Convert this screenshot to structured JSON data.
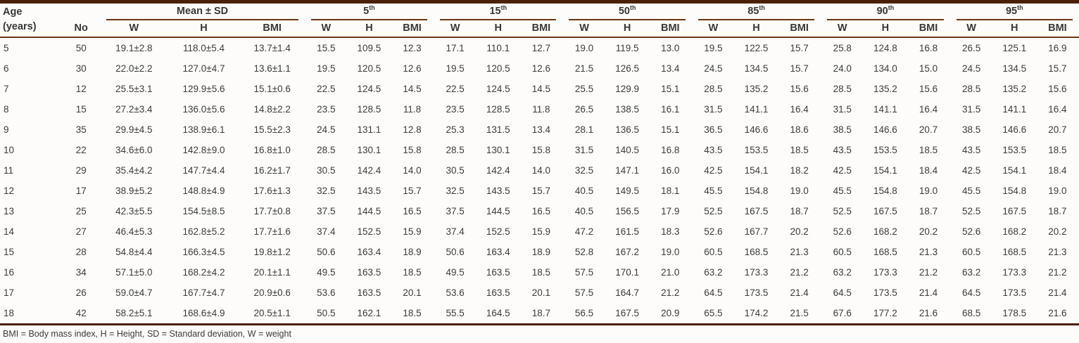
{
  "theme": {
    "rule_dark": "#4a2106",
    "rule_thin": "#6e3512",
    "text": "#3c3c3c",
    "background": "#fdfcfa"
  },
  "table": {
    "corner": {
      "line1": "Age",
      "line2": "(years)"
    },
    "no_label": "No",
    "groups": [
      {
        "label": "Mean ± SD",
        "sup": ""
      },
      {
        "label": "5",
        "sup": "th"
      },
      {
        "label": "15",
        "sup": "th"
      },
      {
        "label": "50",
        "sup": "th"
      },
      {
        "label": "85",
        "sup": "th"
      },
      {
        "label": "90",
        "sup": "th"
      },
      {
        "label": "95",
        "sup": "th"
      }
    ],
    "subcols": [
      "W",
      "H",
      "BMI"
    ],
    "rows": [
      {
        "age": "5",
        "no": "50",
        "cells": [
          "19.1±2.8",
          "118.0±5.4",
          "13.7±1.4",
          "15.5",
          "109.5",
          "12.3",
          "17.1",
          "110.1",
          "12.7",
          "19.0",
          "119.5",
          "13.0",
          "19.5",
          "122.5",
          "15.7",
          "25.8",
          "124.8",
          "16.8",
          "26.5",
          "125.1",
          "16.9"
        ]
      },
      {
        "age": "6",
        "no": "30",
        "cells": [
          "22.0±2.2",
          "127.0±4.7",
          "13.6±1.1",
          "19.5",
          "120.5",
          "12.6",
          "19.5",
          "120.5",
          "12.6",
          "21.5",
          "126.5",
          "13.4",
          "24.5",
          "134.5",
          "15.7",
          "24.0",
          "134.0",
          "15.0",
          "24.5",
          "134.5",
          "15.7"
        ]
      },
      {
        "age": "7",
        "no": "12",
        "cells": [
          "25.5±3.1",
          "129.9±5.6",
          "15.1±0.6",
          "22.5",
          "124.5",
          "14.5",
          "22.5",
          "124.5",
          "14.5",
          "25.5",
          "129.9",
          "15.1",
          "28.5",
          "135.2",
          "15.6",
          "28.5",
          "135.2",
          "15.6",
          "28.5",
          "135.2",
          "15.6"
        ]
      },
      {
        "age": "8",
        "no": "15",
        "cells": [
          "27.2±3.4",
          "136.0±5.6",
          "14.8±2.2",
          "23.5",
          "128.5",
          "11.8",
          "23.5",
          "128.5",
          "11.8",
          "26.5",
          "138.5",
          "16.1",
          "31.5",
          "141.1",
          "16.4",
          "31.5",
          "141.1",
          "16.4",
          "31.5",
          "141.1",
          "16.4"
        ]
      },
      {
        "age": "9",
        "no": "35",
        "cells": [
          "29.9±4.5",
          "138.9±6.1",
          "15.5±2.3",
          "24.5",
          "131.1",
          "12.8",
          "25.3",
          "131.5",
          "13.4",
          "28.1",
          "136.5",
          "15.1",
          "36.5",
          "146.6",
          "18.6",
          "38.5",
          "146.6",
          "20.7",
          "38.5",
          "146.6",
          "20.7"
        ]
      },
      {
        "age": "10",
        "no": "22",
        "cells": [
          "34.6±6.0",
          "142.8±9.0",
          "16.8±1.0",
          "28.5",
          "130.1",
          "15.8",
          "28.5",
          "130.1",
          "15.8",
          "31.5",
          "140.5",
          "16.8",
          "43.5",
          "153.5",
          "18.5",
          "43.5",
          "153.5",
          "18.5",
          "43.5",
          "153.5",
          "18.5"
        ]
      },
      {
        "age": "11",
        "no": "29",
        "cells": [
          "35.4±4.2",
          "147.7±4.4",
          "16.2±1.7",
          "30.5",
          "142.4",
          "14.0",
          "30.5",
          "142.4",
          "14.0",
          "32.5",
          "147.1",
          "16.0",
          "42.5",
          "154.1",
          "18.2",
          "42.5",
          "154.1",
          "18.4",
          "42.5",
          "154.1",
          "18.4"
        ]
      },
      {
        "age": "12",
        "no": "17",
        "cells": [
          "38.9±5.2",
          "148.8±4.9",
          "17.6±1.3",
          "32.5",
          "143.5",
          "15.7",
          "32.5",
          "143.5",
          "15.7",
          "40.5",
          "149.5",
          "18.1",
          "45.5",
          "154.8",
          "19.0",
          "45.5",
          "154.8",
          "19.0",
          "45.5",
          "154.8",
          "19.0"
        ]
      },
      {
        "age": "13",
        "no": "25",
        "cells": [
          "42.3±5.5",
          "154.5±8.5",
          "17.7±0.8",
          "37.5",
          "144.5",
          "16.5",
          "37.5",
          "144.5",
          "16.5",
          "40.5",
          "156.5",
          "17.9",
          "52.5",
          "167.5",
          "18.7",
          "52.5",
          "167.5",
          "18.7",
          "52.5",
          "167.5",
          "18.7"
        ]
      },
      {
        "age": "14",
        "no": "27",
        "cells": [
          "46.4±5.3",
          "162.8±5.2",
          "17.7±1.6",
          "37.4",
          "152.5",
          "15.9",
          "37.4",
          "152.5",
          "15.9",
          "47.2",
          "161.5",
          "18.3",
          "52.6",
          "167.7",
          "20.2",
          "52.6",
          "168.2",
          "20.2",
          "52.6",
          "168.2",
          "20.2"
        ]
      },
      {
        "age": "15",
        "no": "28",
        "cells": [
          "54.8±4.4",
          "166.3±4.5",
          "19.8±1.2",
          "50.6",
          "163.4",
          "18.9",
          "50.6",
          "163.4",
          "18.9",
          "52.8",
          "167.2",
          "19.0",
          "60.5",
          "168.5",
          "21.3",
          "60.5",
          "168.5",
          "21.3",
          "60.5",
          "168.5",
          "21.3"
        ]
      },
      {
        "age": "16",
        "no": "34",
        "cells": [
          "57.1±5.0",
          "168.2±4.2",
          "20.1±1.1",
          "49.5",
          "163.5",
          "18.5",
          "49.5",
          "163.5",
          "18.5",
          "57.5",
          "170.1",
          "21.0",
          "63.2",
          "173.3",
          "21.2",
          "63.2",
          "173.3",
          "21.2",
          "63.2",
          "173.3",
          "21.2"
        ]
      },
      {
        "age": "17",
        "no": "26",
        "cells": [
          "59.0±4.7",
          "167.7±4.7",
          "20.9±0.6",
          "53.6",
          "163.5",
          "20.1",
          "53.6",
          "163.5",
          "20.1",
          "57.5",
          "164.7",
          "21.2",
          "64.5",
          "173.5",
          "21.4",
          "64.5",
          "173.5",
          "21.4",
          "64.5",
          "173.5",
          "21.4"
        ]
      },
      {
        "age": "18",
        "no": "42",
        "cells": [
          "58.2±5.1",
          "168.6±4.9",
          "20.5±1.1",
          "50.5",
          "162.1",
          "18.5",
          "55.5",
          "164.5",
          "18.7",
          "56.5",
          "167.5",
          "20.9",
          "65.5",
          "174.2",
          "21.5",
          "67.6",
          "177.2",
          "21.6",
          "68.5",
          "178.5",
          "21.6"
        ]
      }
    ],
    "footnote": "BMI = Body mass index, H = Height, SD = Standard deviation, W = weight"
  }
}
